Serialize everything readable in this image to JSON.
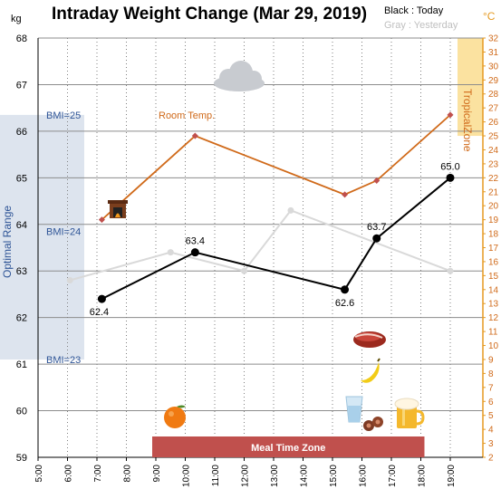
{
  "chart_data": {
    "type": "line",
    "title": "Intraday Weight Change (Mar 29, 2019)",
    "legend": {
      "today": "Black : Today",
      "yesterday": "Gray : Yesterday"
    },
    "y_unit_left": "kg",
    "y_unit_right": "°C",
    "ylim_left": [
      59,
      68
    ],
    "ylim_right": [
      2,
      32
    ],
    "x_ticks": [
      "5:00",
      "6:00",
      "7:00",
      "8:00",
      "9:00",
      "10:00",
      "11:00",
      "12:00",
      "13:00",
      "14:00",
      "15:00",
      "16:00",
      "17:00",
      "18:00",
      "19:00"
    ],
    "series": [
      {
        "name": "Today",
        "color": "#000000",
        "x": [
          "7:10",
          "10:20",
          "15:25",
          "16:30",
          "19:00"
        ],
        "y": [
          62.4,
          63.4,
          62.6,
          63.7,
          65.0
        ],
        "labels": [
          "62.4",
          "63.4",
          "62.6",
          "63.7",
          "65.0"
        ]
      },
      {
        "name": "Yesterday",
        "color": "#d9d9d9",
        "x": [
          "6:05",
          "9:30",
          "12:00",
          "13:35",
          "19:00"
        ],
        "y": [
          62.8,
          63.4,
          63.0,
          64.3,
          63.0
        ]
      },
      {
        "name": "Room Temp.",
        "color": "#d06a1a",
        "axis": "right",
        "x": [
          "7:10",
          "10:20",
          "15:25",
          "16:30",
          "19:00"
        ],
        "y": [
          19.0,
          25.0,
          20.8,
          21.8,
          26.5
        ]
      }
    ],
    "bmi_lines": [
      {
        "label": "BMI=25",
        "value": 66.35
      },
      {
        "label": "BMI=24",
        "value": 63.85
      },
      {
        "label": "BMI=23",
        "value": 61.1
      }
    ],
    "optimal_range": {
      "label": "Optimal Range",
      "from": 61.1,
      "to": 66.35
    },
    "tropical_zone": {
      "label": "TropicalZone",
      "from": 25.0,
      "to": 32.0
    },
    "meal_time_zone": {
      "label": "Meal Time Zone",
      "from": "9:00",
      "to": "18:00"
    },
    "room_temp_label": "Room Temp.",
    "grid": true,
    "icons": [
      "cloud-icon",
      "fireplace-icon",
      "steak-icon",
      "banana-icon",
      "orange-icon",
      "water-glass-icon",
      "sausage-icon",
      "beer-icon"
    ]
  }
}
